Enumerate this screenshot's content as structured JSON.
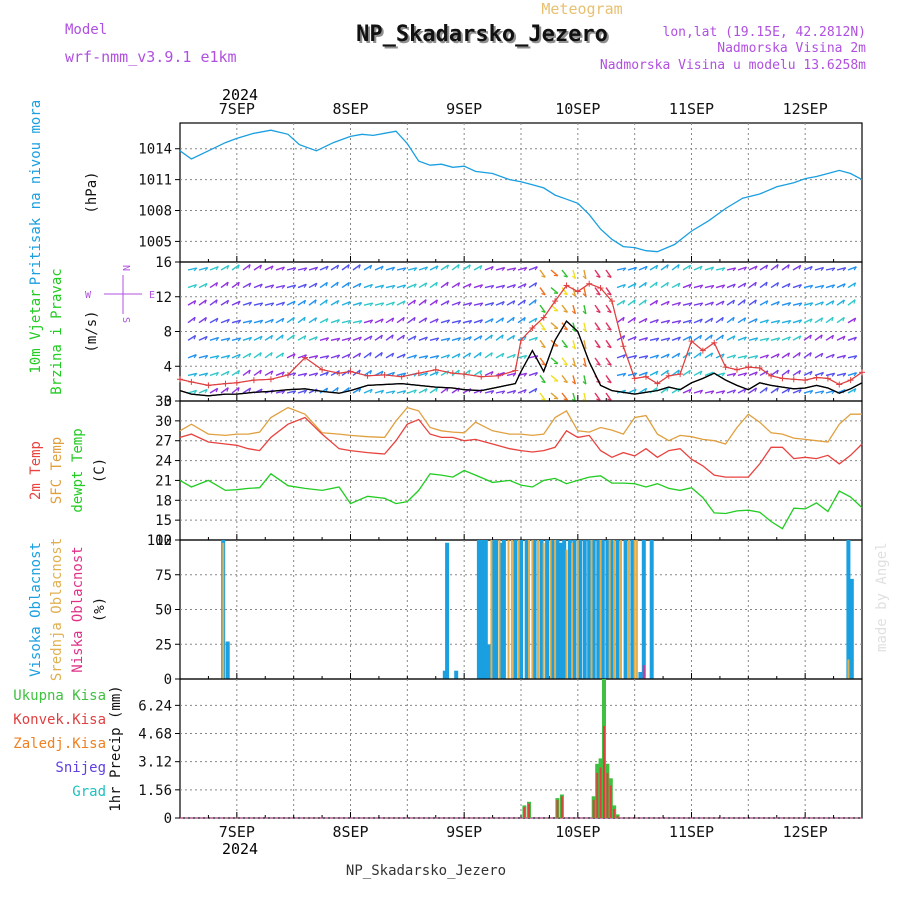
{
  "header": {
    "model_label": "Model",
    "model_name": "wrf-nmm_v3.9.1 e1km",
    "meteogram_label": "Meteogram",
    "station_title": "NP_Skadarsko_Jezero",
    "coords": "lon,lat (19.15E, 42.2812N)",
    "elevation": "Nadmorska Visina 2m",
    "model_elevation": "Nadmorska Visina u modelu 13.6258m",
    "watermark": "made by Angel",
    "footer_station": "NP_Skadarsko_Jezero"
  },
  "time_axis": {
    "year": "2024",
    "day_labels": [
      "7SEP",
      "8SEP",
      "9SEP",
      "10SEP",
      "11SEP",
      "12SEP"
    ],
    "x_start_day": 6.5,
    "x_end_day": 12.5
  },
  "colors": {
    "pressure": "#1a9fe0",
    "temp2m": "#e8433f",
    "sfc_temp": "#e0a040",
    "dewpoint": "#22cc22",
    "high_cloud": "#1a9fe0",
    "mid_cloud": "#e0b050",
    "low_cloud": "#e0308a",
    "total_precip": "#40c040",
    "conv_precip": "#e04040",
    "frozen_precip": "#f08020",
    "snow": "#6040e0",
    "hail": "#20c0c0",
    "model": "#b050e0",
    "meteogram": "#e8c070",
    "wind_line": "#000000",
    "gust": "#e04040"
  },
  "chart_data": [
    {
      "type": "line",
      "panel": "pressure",
      "ylabel_lines": [
        "Pritisak na nivou mora",
        "(hPa)"
      ],
      "yticks": [
        1005,
        1008,
        1011,
        1014
      ],
      "ylim": [
        1003,
        1016.5
      ],
      "grid": true,
      "x_days": [
        6.5,
        6.6,
        6.75,
        6.9,
        7.0,
        7.15,
        7.3,
        7.45,
        7.55,
        7.7,
        7.85,
        8.0,
        8.1,
        8.2,
        8.3,
        8.4,
        8.5,
        8.6,
        8.7,
        8.8,
        8.9,
        9.0,
        9.1,
        9.25,
        9.4,
        9.5,
        9.6,
        9.7,
        9.8,
        9.9,
        10.0,
        10.1,
        10.2,
        10.3,
        10.4,
        10.5,
        10.6,
        10.7,
        10.85,
        11.0,
        11.15,
        11.3,
        11.45,
        11.6,
        11.75,
        11.9,
        12.0,
        12.1,
        12.2,
        12.3,
        12.4,
        12.5
      ],
      "series": [
        {
          "values": [
            1013.8,
            1013.0,
            1013.8,
            1014.6,
            1015.0,
            1015.5,
            1015.8,
            1015.4,
            1014.4,
            1013.8,
            1014.6,
            1015.2,
            1015.4,
            1015.3,
            1015.5,
            1015.7,
            1014.5,
            1012.8,
            1012.4,
            1012.5,
            1012.2,
            1012.3,
            1011.8,
            1011.6,
            1011.0,
            1010.8,
            1010.5,
            1010.2,
            1009.5,
            1009.1,
            1008.7,
            1007.6,
            1006.2,
            1005.2,
            1004.5,
            1004.4,
            1004.1,
            1004.0,
            1004.7,
            1006.0,
            1007.0,
            1008.2,
            1009.2,
            1009.6,
            1010.3,
            1010.7,
            1011.1,
            1011.3,
            1011.6,
            1011.9,
            1011.6,
            1011.0
          ]
        }
      ]
    },
    {
      "type": "line",
      "panel": "wind",
      "ylabel_lines": [
        "10m Vjetar",
        "Brzina i Pravac",
        "(m/s)"
      ],
      "compass": {
        "n": "N",
        "s": "S",
        "e": "E",
        "w": "W"
      },
      "yticks": [
        0,
        4,
        8,
        12,
        16
      ],
      "ylim": [
        0,
        16
      ],
      "grid": true,
      "x_days": [
        6.5,
        6.6,
        6.75,
        6.9,
        7.0,
        7.15,
        7.3,
        7.45,
        7.6,
        7.75,
        7.9,
        8.0,
        8.15,
        8.3,
        8.45,
        8.6,
        8.75,
        8.9,
        9.0,
        9.15,
        9.3,
        9.45,
        9.5,
        9.6,
        9.7,
        9.8,
        9.9,
        10.0,
        10.1,
        10.2,
        10.3,
        10.4,
        10.5,
        10.6,
        10.7,
        10.8,
        10.9,
        11.0,
        11.1,
        11.2,
        11.3,
        11.4,
        11.5,
        11.6,
        11.7,
        11.8,
        11.9,
        12.0,
        12.1,
        12.2,
        12.3,
        12.4,
        12.5
      ],
      "series": [
        {
          "name": "speed",
          "values": [
            1.2,
            0.8,
            0.6,
            0.8,
            0.8,
            1.0,
            1.1,
            1.3,
            1.4,
            1.1,
            0.9,
            1.2,
            1.8,
            1.9,
            2.0,
            1.8,
            1.6,
            1.5,
            1.3,
            1.2,
            1.6,
            2.0,
            3.4,
            5.8,
            3.4,
            7.0,
            9.2,
            8.0,
            4.5,
            1.8,
            1.2,
            1.0,
            0.8,
            1.0,
            1.2,
            1.6,
            1.3,
            2.1,
            2.6,
            3.2,
            2.4,
            1.8,
            1.3,
            2.1,
            1.8,
            1.6,
            1.4,
            1.5,
            1.8,
            1.5,
            0.9,
            1.4,
            2.1
          ]
        },
        {
          "name": "gust",
          "values": [
            2.5,
            2.2,
            1.8,
            2.0,
            2.1,
            2.4,
            2.5,
            3.0,
            5.0,
            3.6,
            3.2,
            3.4,
            2.9,
            3.0,
            2.8,
            3.2,
            3.6,
            3.2,
            3.1,
            2.8,
            2.9,
            3.5,
            7.0,
            8.4,
            9.6,
            11.5,
            13.3,
            12.6,
            13.5,
            13.0,
            11.5,
            6.3,
            2.6,
            2.8,
            2.0,
            2.9,
            3.1,
            6.9,
            5.8,
            6.7,
            3.9,
            3.6,
            3.9,
            3.8,
            2.9,
            2.6,
            2.5,
            2.4,
            2.7,
            2.6,
            1.9,
            2.4,
            3.3
          ]
        }
      ]
    },
    {
      "type": "line",
      "panel": "temperature",
      "ylabel_lines": [
        "2m Temp",
        "SFC Temp",
        "dewpt Temp",
        "(C)"
      ],
      "yticks": [
        12,
        15,
        18,
        21,
        24,
        27,
        30,
        33
      ],
      "ylim": [
        12,
        33
      ],
      "grid": true,
      "x_days": [
        6.5,
        6.6,
        6.75,
        6.9,
        7.0,
        7.1,
        7.2,
        7.3,
        7.45,
        7.6,
        7.75,
        7.9,
        8.0,
        8.15,
        8.3,
        8.4,
        8.5,
        8.6,
        8.7,
        8.8,
        8.9,
        9.0,
        9.1,
        9.25,
        9.4,
        9.5,
        9.6,
        9.7,
        9.8,
        9.9,
        10.0,
        10.1,
        10.2,
        10.3,
        10.4,
        10.5,
        10.6,
        10.7,
        10.8,
        10.9,
        11.0,
        11.1,
        11.2,
        11.3,
        11.4,
        11.5,
        11.6,
        11.7,
        11.8,
        11.9,
        12.0,
        12.1,
        12.2,
        12.3,
        12.4,
        12.5
      ],
      "series": [
        {
          "name": "SFC Temp",
          "values": [
            28.5,
            29.5,
            28.0,
            27.8,
            28.0,
            28.0,
            28.3,
            30.5,
            32.0,
            31.0,
            28.2,
            28.0,
            27.8,
            27.6,
            27.5,
            30.0,
            32.0,
            31.5,
            29.0,
            28.5,
            28.3,
            28.2,
            29.8,
            28.5,
            28.0,
            28.0,
            27.8,
            28.0,
            30.5,
            31.5,
            28.5,
            28.3,
            29.0,
            28.6,
            28.0,
            30.5,
            30.8,
            28.0,
            27.0,
            27.8,
            27.6,
            27.2,
            27.0,
            26.5,
            29.0,
            31.0,
            29.8,
            28.2,
            28.0,
            27.4,
            27.2,
            27.0,
            26.8,
            29.5,
            31.0,
            31.0
          ]
        },
        {
          "name": "2m Temp",
          "values": [
            27.5,
            28.0,
            26.8,
            26.5,
            26.3,
            25.8,
            25.5,
            27.5,
            29.5,
            30.5,
            28.0,
            25.8,
            25.5,
            25.2,
            25.0,
            27.0,
            29.5,
            30.2,
            28.0,
            27.5,
            27.5,
            27.0,
            27.2,
            26.5,
            25.8,
            25.5,
            25.3,
            25.5,
            26.0,
            28.5,
            27.5,
            27.8,
            25.5,
            24.5,
            25.2,
            24.7,
            25.8,
            24.5,
            25.5,
            25.8,
            24.2,
            23.2,
            21.8,
            21.5,
            21.5,
            21.5,
            23.5,
            26.0,
            26.0,
            24.3,
            24.5,
            24.3,
            24.8,
            23.5,
            24.8,
            26.5
          ]
        },
        {
          "name": "dewpt Temp",
          "values": [
            21.0,
            20.0,
            21.0,
            19.5,
            19.6,
            19.8,
            19.9,
            22.0,
            20.2,
            19.8,
            19.5,
            20.0,
            17.5,
            18.6,
            18.3,
            17.5,
            17.8,
            19.5,
            22.0,
            21.8,
            21.5,
            22.5,
            21.8,
            20.7,
            21.0,
            20.3,
            20.0,
            21.0,
            21.3,
            20.5,
            21.0,
            21.5,
            21.7,
            20.6,
            20.6,
            20.5,
            20.0,
            20.5,
            19.8,
            19.5,
            19.9,
            18.4,
            16.1,
            16.0,
            16.4,
            16.5,
            16.2,
            14.8,
            13.7,
            16.8,
            16.7,
            17.6,
            16.3,
            19.4,
            18.5,
            16.9
          ]
        }
      ]
    },
    {
      "type": "bar",
      "panel": "cloud",
      "ylabel_lines": [
        "Visoka Oblacnost",
        "Srednja Oblacnost",
        "Niska Oblacnost",
        "(%)"
      ],
      "yticks": [
        0,
        25,
        50,
        75,
        100
      ],
      "ylim": [
        0,
        100
      ],
      "grid": true,
      "series": [
        {
          "name": "Visoka Oblacnost",
          "x_days": [
            6.88,
            6.92,
            8.83,
            8.85,
            8.93,
            9.13,
            9.16,
            9.19,
            9.22,
            9.25,
            9.28,
            9.32,
            9.35,
            9.45,
            9.5,
            9.55,
            9.62,
            9.68,
            9.73,
            9.78,
            9.82,
            9.85,
            9.88,
            9.93,
            9.97,
            10.02,
            10.06,
            10.1,
            10.14,
            10.18,
            10.22,
            10.26,
            10.3,
            10.35,
            10.42,
            10.48,
            10.55,
            10.58,
            10.65,
            12.38,
            12.41
          ],
          "values": [
            100,
            27,
            6,
            98,
            6,
            100,
            100,
            100,
            25,
            100,
            100,
            98,
            100,
            100,
            100,
            100,
            100,
            100,
            100,
            100,
            100,
            98,
            100,
            100,
            100,
            100,
            100,
            100,
            100,
            100,
            100,
            100,
            100,
            100,
            100,
            100,
            5,
            100,
            100,
            100,
            72
          ]
        },
        {
          "name": "Srednja Oblacnost",
          "x_days": [
            6.88,
            9.24,
            9.31,
            9.39,
            9.42,
            9.48,
            9.57,
            9.6,
            9.65,
            9.7,
            9.76,
            9.8,
            9.9,
            9.95,
            10.0,
            10.12,
            10.2,
            10.28,
            10.32,
            10.38,
            10.45,
            10.5,
            10.52,
            12.38
          ],
          "values": [
            98,
            100,
            100,
            100,
            100,
            100,
            100,
            100,
            100,
            98,
            100,
            100,
            93,
            98,
            100,
            100,
            100,
            100,
            100,
            100,
            100,
            100,
            100,
            14
          ]
        },
        {
          "name": "Niska Oblacnost",
          "x_days": [
            10.58
          ],
          "values": [
            10
          ]
        }
      ]
    },
    {
      "type": "bar",
      "panel": "precip",
      "ylabel_lines": [
        "1hr Precip (mm)"
      ],
      "legend": [
        "Ukupna Kisa",
        "Konvek.Kisa",
        "Zaledj.Kisa",
        "Snijeg",
        "Grad"
      ],
      "yticks": [
        0,
        1.56,
        3.12,
        4.68,
        6.24
      ],
      "ytick_labels": [
        "0",
        "1.56",
        "3.12",
        "4.68",
        "6.24"
      ],
      "ylim": [
        0,
        7.7
      ],
      "grid": true,
      "x_days": [
        9.53,
        9.57,
        9.82,
        9.86,
        10.14,
        10.17,
        10.2,
        10.23,
        10.26,
        10.29,
        10.32,
        10.35
      ],
      "series": [
        {
          "name": "Ukupna Kisa",
          "values": [
            0.7,
            0.9,
            1.1,
            1.3,
            1.2,
            3.0,
            3.3,
            7.7,
            3.0,
            2.2,
            0.7,
            0.2
          ]
        },
        {
          "name": "Konvek.Kisa",
          "values": [
            0.6,
            0.8,
            1.0,
            1.2,
            1.0,
            2.5,
            2.8,
            5.1,
            2.5,
            1.8,
            0.5,
            0.1
          ]
        }
      ]
    }
  ]
}
